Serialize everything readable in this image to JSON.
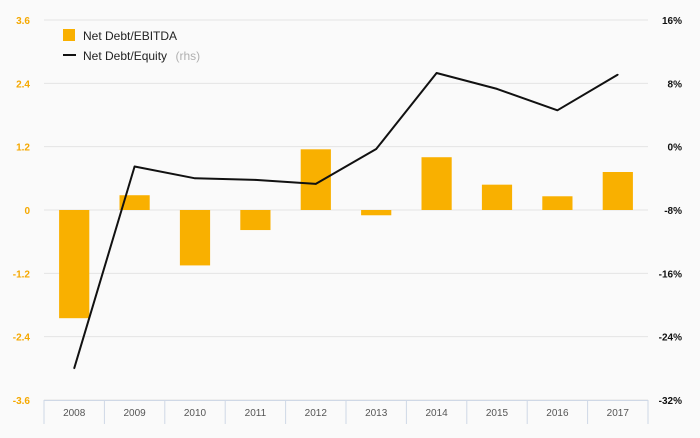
{
  "chart_data": {
    "type": "bar",
    "categories": [
      "2008",
      "2009",
      "2010",
      "2011",
      "2012",
      "2013",
      "2014",
      "2015",
      "2016",
      "2017"
    ],
    "series": [
      {
        "name": "Net Debt/EBITDA",
        "type": "bar",
        "axis": "left",
        "color": "#f9b000",
        "values": [
          -2.05,
          0.28,
          -1.05,
          -0.38,
          1.15,
          -0.1,
          1.0,
          0.48,
          0.26,
          0.72
        ]
      },
      {
        "name": "Net Debt/Equity",
        "type": "line",
        "axis": "right",
        "color": "#111111",
        "values": [
          -28.0,
          -2.5,
          -4.0,
          -4.2,
          -4.7,
          -0.3,
          9.3,
          7.3,
          4.6,
          9.1
        ]
      }
    ],
    "legend": {
      "position": "top-left",
      "items": [
        {
          "label": "Net Debt/EBITDA",
          "suffix": ""
        },
        {
          "label": "Net Debt/Equity",
          "suffix": "(rhs)"
        }
      ]
    },
    "y_left": {
      "range": [
        -3.6,
        3.6
      ],
      "ticks": [
        "3.6",
        "2.4",
        "1.2",
        "0",
        "-1.2",
        "-2.4",
        "-3.6"
      ],
      "color": "#f5a800"
    },
    "y_right": {
      "range": [
        -32,
        16
      ],
      "ticks": [
        "16%",
        "8%",
        "0%",
        "-8%",
        "-16%",
        "-24%",
        "-32%"
      ]
    },
    "grid": true
  }
}
